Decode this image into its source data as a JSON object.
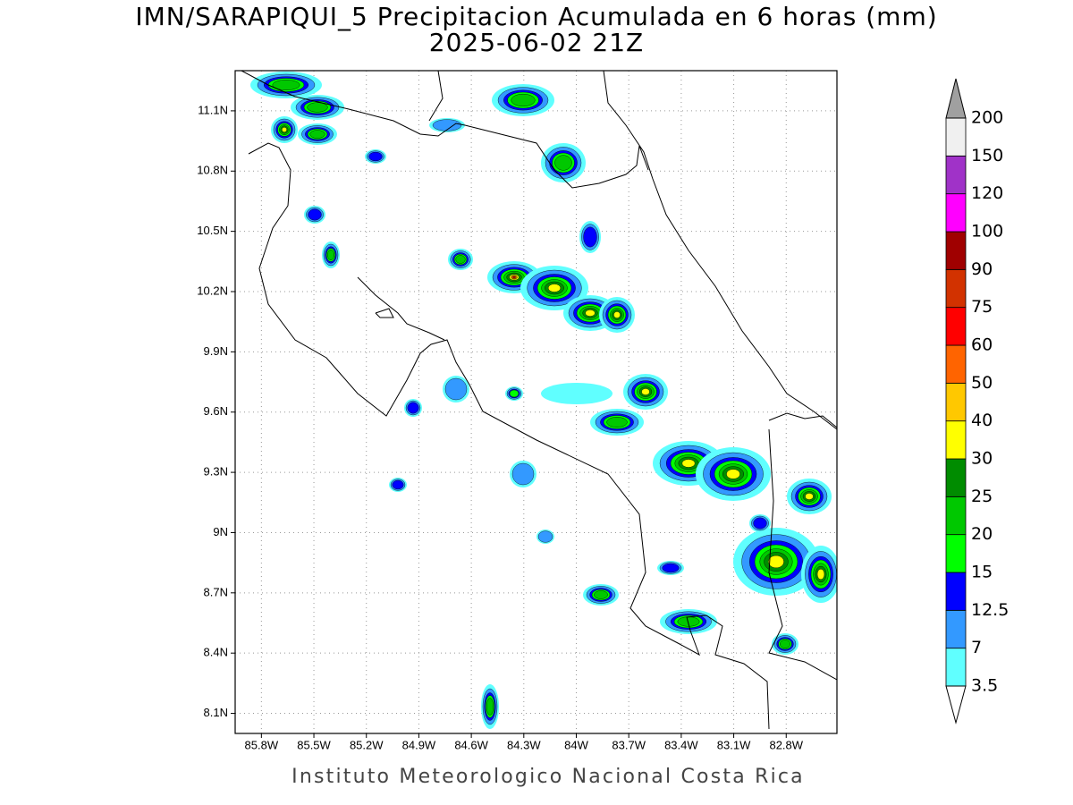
{
  "title": "IMN/SARAPIQUI_5 Precipitacion Acumulada en 6 horas (mm)",
  "subtitle": "2025-06-02 21Z",
  "map": {
    "xlim": [
      -85.95,
      -82.51
    ],
    "ylim": [
      8.0,
      11.3
    ],
    "grid": true,
    "xticks": [
      {
        "value": -85.8,
        "label": "85.8W"
      },
      {
        "value": -85.5,
        "label": "85.5W"
      },
      {
        "value": -85.2,
        "label": "85.2W"
      },
      {
        "value": -84.9,
        "label": "84.9W"
      },
      {
        "value": -84.6,
        "label": "84.6W"
      },
      {
        "value": -84.3,
        "label": "84.3W"
      },
      {
        "value": -84,
        "label": "84W"
      },
      {
        "value": -83.7,
        "label": "83.7W"
      },
      {
        "value": -83.4,
        "label": "83.4W"
      },
      {
        "value": -83.1,
        "label": "83.1W"
      },
      {
        "value": -82.8,
        "label": "82.8W"
      }
    ],
    "yticks": [
      {
        "value": 11.1,
        "label": "11.1N"
      },
      {
        "value": 10.8,
        "label": "10.8N"
      },
      {
        "value": 10.5,
        "label": "10.5N"
      },
      {
        "value": 10.2,
        "label": "10.2N"
      },
      {
        "value": 9.9,
        "label": "9.9N"
      },
      {
        "value": 9.6,
        "label": "9.6N"
      },
      {
        "value": 9.3,
        "label": "9.3N"
      },
      {
        "value": 9,
        "label": "9N"
      },
      {
        "value": 8.7,
        "label": "8.7N"
      },
      {
        "value": 8.4,
        "label": "8.4N"
      },
      {
        "value": 8.1,
        "label": "8.1N"
      }
    ]
  },
  "colorbar": {
    "levels": [
      3.5,
      7,
      12.5,
      15,
      20,
      25,
      30,
      40,
      50,
      60,
      75,
      90,
      100,
      120,
      150,
      200
    ],
    "colors": [
      "#60ffff",
      "#3399ff",
      "#0000ff",
      "#00ff00",
      "#00c800",
      "#008c00",
      "#ffff00",
      "#ffc800",
      "#ff6400",
      "#ff0000",
      "#d23200",
      "#a00000",
      "#ff00ff",
      "#a032c8",
      "#f0f0f0"
    ],
    "under_color": "#ffffff",
    "over_color": "#a0a0a0"
  },
  "footer": "Instituto Meteorologico Nacional Costa Rica"
}
